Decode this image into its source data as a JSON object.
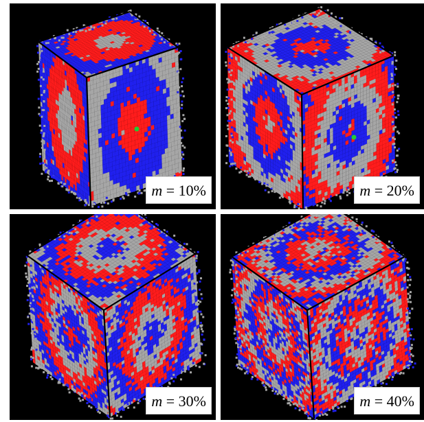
{
  "figure": {
    "panels": [
      {
        "id": "p1",
        "variable": "m",
        "value_text": " = 10%",
        "m_percent": 10,
        "has_seed": true
      },
      {
        "id": "p2",
        "variable": "m",
        "value_text": " = 20%",
        "m_percent": 20,
        "has_seed": true
      },
      {
        "id": "p3",
        "variable": "m",
        "value_text": " = 30%",
        "m_percent": 30,
        "has_seed": false
      },
      {
        "id": "p4",
        "variable": "m",
        "value_text": " = 40%",
        "m_percent": 40,
        "has_seed": false
      }
    ],
    "colors": {
      "background": "#000000",
      "gray": "#a6a6a6",
      "red": "#ff1c1c",
      "blue": "#2020ee",
      "seed": "#22cc33",
      "edge": "#000000"
    }
  }
}
